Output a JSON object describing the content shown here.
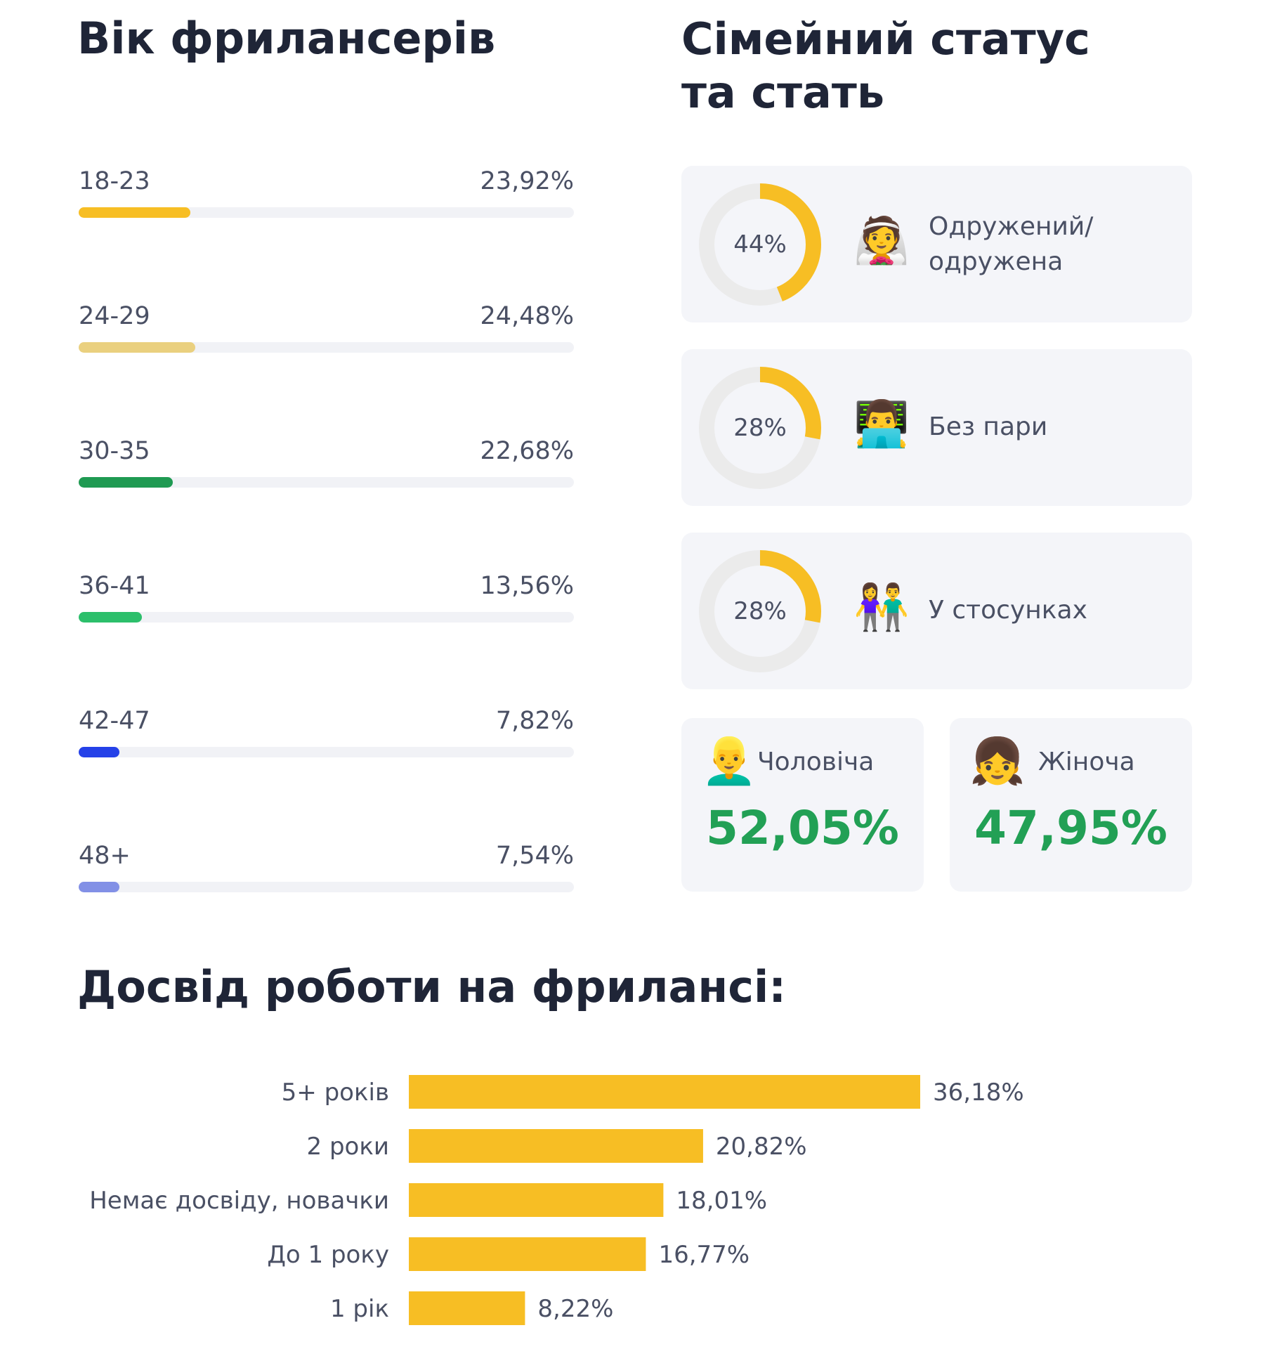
{
  "age": {
    "title": "Вік фрилансерів",
    "rows": [
      {
        "label": "18-23",
        "value_text": "23,92%",
        "bar_fraction": 0.225,
        "color": "#f7be24"
      },
      {
        "label": "24-29",
        "value_text": "24,48%",
        "bar_fraction": 0.235,
        "color": "#ead07f"
      },
      {
        "label": "30-35",
        "value_text": "22,68%",
        "bar_fraction": 0.19,
        "color": "#1f9a52"
      },
      {
        "label": "36-41",
        "value_text": "13,56%",
        "bar_fraction": 0.128,
        "color": "#2cbf6b"
      },
      {
        "label": "42-47",
        "value_text": "7,82%",
        "bar_fraction": 0.082,
        "color": "#2541e8"
      },
      {
        "label": "48+",
        "value_text": "7,54%",
        "bar_fraction": 0.082,
        "color": "#8290e6"
      }
    ]
  },
  "status": {
    "title": "Сімейний статус\nта стать",
    "items": [
      {
        "percent_text": "44%",
        "value": 44,
        "emoji": "👰",
        "emoji_name": "bride-icon",
        "label": "Одружений/ одружена"
      },
      {
        "percent_text": "28%",
        "value": 28,
        "emoji": "👨‍💻",
        "emoji_name": "man-laptop-icon",
        "label": "Без пари"
      },
      {
        "percent_text": "28%",
        "value": 28,
        "emoji": "👫",
        "emoji_name": "couple-icon",
        "label": "У стосунках"
      }
    ],
    "donut_color": "#f7be24",
    "donut_track_color": "#ebebeb"
  },
  "gender": {
    "male": {
      "label": "Чоловіча",
      "value_text": "52,05%",
      "emoji": "👱‍♂️",
      "emoji_name": "man-face-icon"
    },
    "female": {
      "label": "Жіноча",
      "value_text": "47,95%",
      "emoji": "👧",
      "emoji_name": "woman-face-icon"
    },
    "value_color": "#22a055"
  },
  "experience": {
    "title": "Досвід роботи на фрилансі:"
  },
  "chart_data": {
    "type": "bar",
    "orientation": "horizontal",
    "title": "Досвід роботи на фрилансі:",
    "categories": [
      "5+ років",
      "2 роки",
      "Немає досвіду, новачки",
      "До 1 року",
      "1 рік"
    ],
    "values": [
      36.18,
      20.82,
      18.01,
      16.77,
      8.22
    ],
    "value_labels": [
      "36,18%",
      "20,82%",
      "18,01%",
      "16,77%",
      "8,22%"
    ],
    "unit": "%",
    "color": "#f7be24",
    "grid": false
  }
}
